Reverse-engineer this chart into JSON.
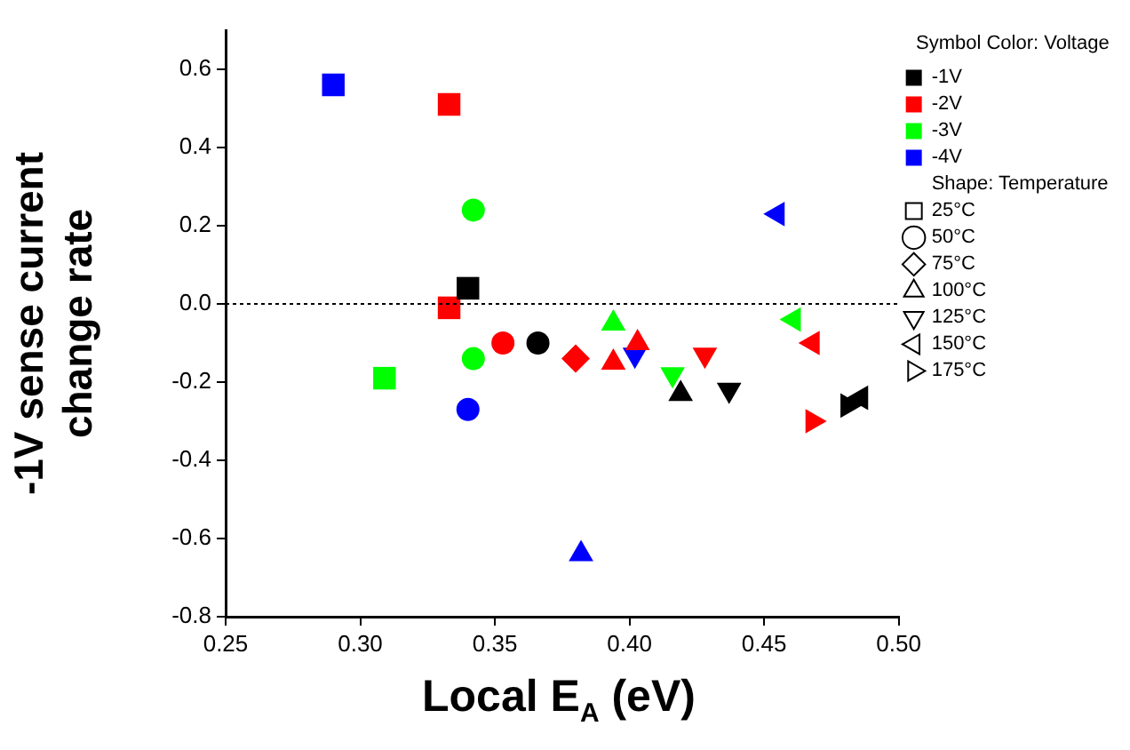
{
  "chart_data": {
    "type": "scatter",
    "xlabel": "Local E$_{A}$ (eV)",
    "ylabel": "-1V sense current\nchange rate",
    "legend_title": "Symbol Color: Voltage",
    "annotations": [
      "Shape: Temperature"
    ],
    "xlim": [
      0.25,
      0.5
    ],
    "xticks": [
      {
        "value": 0.25,
        "label": "0.25"
      },
      {
        "value": 0.3,
        "label": "0.30"
      },
      {
        "value": 0.35,
        "label": "0.35"
      },
      {
        "value": 0.4,
        "label": "0.40"
      },
      {
        "value": 0.45,
        "label": "0.45"
      },
      {
        "value": 0.5,
        "label": "0.50"
      }
    ],
    "ylim": [
      -0.8,
      0.7
    ],
    "yticks": [
      {
        "value": -0.8,
        "label": "-0.8"
      },
      {
        "value": -0.6,
        "label": "-0.6"
      },
      {
        "value": -0.4,
        "label": "-0.4"
      },
      {
        "value": -0.2,
        "label": "-0.2"
      },
      {
        "value": 0,
        "label": "0.0"
      },
      {
        "value": 0.2,
        "label": "0.2"
      },
      {
        "value": 0.4,
        "label": "0.4"
      },
      {
        "value": 0.6,
        "label": "0.6"
      }
    ],
    "grid": false,
    "legend": "right",
    "ref_lines": [
      {
        "axis": "y",
        "value": 0,
        "line_style": "dotted",
        "color": "#000000"
      }
    ],
    "series": [
      {
        "color": "#000000",
        "marker": "square",
        "x": [
          0.34
        ],
        "values": [
          0.04
        ]
      },
      {
        "color": "#000000",
        "marker": "circle",
        "x": [
          0.366
        ],
        "values": [
          -0.1
        ]
      },
      {
        "color": "#000000",
        "marker": "triangle",
        "x": [
          0.419
        ],
        "values": [
          -0.23
        ]
      },
      {
        "color": "#000000",
        "marker": "triangle-down",
        "x": [
          0.437
        ],
        "values": [
          -0.22
        ]
      },
      {
        "color": "#000000",
        "marker": "triangle-left",
        "x": [
          0.486
        ],
        "values": [
          -0.24
        ]
      },
      {
        "color": "#000000",
        "marker": "triangle-right",
        "x": [
          0.481
        ],
        "values": [
          -0.26
        ]
      },
      {
        "color": "#ff0000",
        "marker": "square",
        "x": [
          0.333,
          0.333
        ],
        "values": [
          0.51,
          -0.01
        ]
      },
      {
        "color": "#ff0000",
        "marker": "circle",
        "x": [
          0.353
        ],
        "values": [
          -0.1
        ]
      },
      {
        "color": "#ff0000",
        "marker": "diamond",
        "x": [
          0.38
        ],
        "values": [
          -0.14
        ]
      },
      {
        "color": "#ff0000",
        "marker": "triangle",
        "x": [
          0.394,
          0.403
        ],
        "values": [
          -0.15,
          -0.1
        ]
      },
      {
        "color": "#ff0000",
        "marker": "triangle-down",
        "x": [
          0.428
        ],
        "values": [
          -0.13
        ]
      },
      {
        "color": "#ff0000",
        "marker": "triangle-left",
        "x": [
          0.468
        ],
        "values": [
          -0.1
        ]
      },
      {
        "color": "#ff0000",
        "marker": "triangle-right",
        "x": [
          0.468
        ],
        "values": [
          -0.3
        ]
      },
      {
        "color": "#00ff00",
        "marker": "square",
        "x": [
          0.309
        ],
        "values": [
          -0.19
        ]
      },
      {
        "color": "#00ff00",
        "marker": "circle",
        "x": [
          0.342,
          0.342
        ],
        "values": [
          0.24,
          -0.14
        ]
      },
      {
        "color": "#00ff00",
        "marker": "triangle",
        "x": [
          0.394
        ],
        "values": [
          -0.05
        ]
      },
      {
        "color": "#00ff00",
        "marker": "triangle-down",
        "x": [
          0.416
        ],
        "values": [
          -0.18
        ]
      },
      {
        "color": "#00ff00",
        "marker": "triangle-left",
        "x": [
          0.461
        ],
        "values": [
          -0.04
        ]
      },
      {
        "color": "#0000ff",
        "marker": "square",
        "x": [
          0.29
        ],
        "values": [
          0.56
        ]
      },
      {
        "color": "#0000ff",
        "marker": "circle",
        "x": [
          0.34
        ],
        "values": [
          -0.27
        ]
      },
      {
        "color": "#0000ff",
        "marker": "triangle",
        "x": [
          0.382
        ],
        "values": [
          -0.64
        ]
      },
      {
        "color": "#0000ff",
        "marker": "triangle-down",
        "x": [
          0.402
        ],
        "values": [
          -0.13
        ]
      },
      {
        "color": "#0000ff",
        "marker": "triangle-left",
        "x": [
          0.455
        ],
        "values": [
          0.23
        ]
      },
      {
        "name": "-1V",
        "color": "#000000",
        "marker": "square"
      },
      {
        "name": "-2V",
        "color": "#ff0000",
        "marker": "square"
      },
      {
        "name": "-3V",
        "color": "#00ff00",
        "marker": "square"
      },
      {
        "name": "-4V",
        "color": "#0000ff",
        "marker": "square"
      },
      {
        "name": "25°C",
        "marker": "square"
      },
      {
        "name": "50°C",
        "marker": "circle"
      },
      {
        "name": "75°C",
        "marker": "diamond"
      },
      {
        "name": "100°C",
        "marker": "triangle"
      },
      {
        "name": "125°C",
        "marker": "triangle-down"
      },
      {
        "name": "150°C",
        "marker": "triangle-left"
      },
      {
        "name": "175°C",
        "marker": "triangle-right"
      }
    ]
  }
}
